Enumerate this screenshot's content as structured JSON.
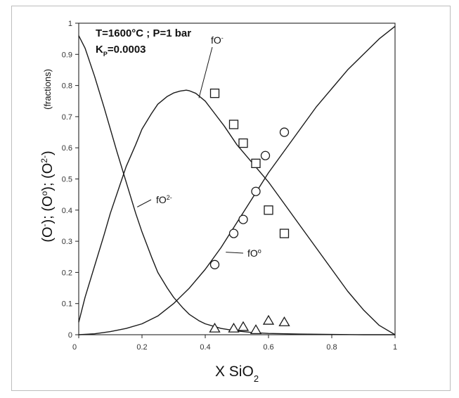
{
  "chart_data": {
    "type": "line",
    "xlabel": {
      "main": "X SiO",
      "sub": "2"
    },
    "ylabel": {
      "parts": [
        {
          "t": "(O"
        },
        {
          "t": "-",
          "sup": true
        },
        {
          "t": "); (O"
        },
        {
          "t": "o",
          "sup": true
        },
        {
          "t": "); (O"
        },
        {
          "t": "2-",
          "sup": true
        },
        {
          "t": ")"
        }
      ],
      "unit": "(fractions)"
    },
    "annotations": [
      {
        "text": "T=1600°C ; P=1 bar"
      },
      {
        "parts": [
          {
            "t": "K"
          },
          {
            "t": "P",
            "sub": true
          },
          {
            "t": "=0.0003"
          }
        ]
      }
    ],
    "xlim": [
      0,
      1
    ],
    "ylim": [
      0,
      1
    ],
    "x_ticks": [
      "0",
      "0.2",
      "0.4",
      "0.6",
      "0.8",
      "1"
    ],
    "y_ticks": [
      "0",
      "0.1",
      "0.2",
      "0.3",
      "0.4",
      "0.5",
      "0.6",
      "0.7",
      "0.8",
      "0.9",
      "1"
    ],
    "series": [
      {
        "name": "fO-",
        "label": {
          "main": "fO",
          "sup": "-"
        },
        "style": "line",
        "x": [
          0.0,
          0.02,
          0.05,
          0.08,
          0.1,
          0.13,
          0.15,
          0.18,
          0.2,
          0.23,
          0.25,
          0.28,
          0.3,
          0.32,
          0.34,
          0.35,
          0.37,
          0.4,
          0.43,
          0.46,
          0.5,
          0.55,
          0.6,
          0.65,
          0.7,
          0.75,
          0.8,
          0.85,
          0.9,
          0.95,
          1.0
        ],
        "y": [
          0.04,
          0.12,
          0.22,
          0.32,
          0.39,
          0.48,
          0.54,
          0.61,
          0.66,
          0.71,
          0.74,
          0.765,
          0.776,
          0.782,
          0.785,
          0.783,
          0.775,
          0.75,
          0.71,
          0.67,
          0.61,
          0.55,
          0.49,
          0.42,
          0.35,
          0.28,
          0.21,
          0.14,
          0.08,
          0.03,
          0.0
        ]
      },
      {
        "name": "fO2-",
        "label": {
          "main": "fO",
          "sup": "2-"
        },
        "style": "line",
        "x": [
          0.0,
          0.02,
          0.05,
          0.08,
          0.1,
          0.12,
          0.15,
          0.18,
          0.2,
          0.23,
          0.25,
          0.28,
          0.3,
          0.33,
          0.35,
          0.38,
          0.4,
          0.45,
          0.5,
          0.55,
          0.6,
          0.7,
          0.8,
          0.9,
          1.0
        ],
        "y": [
          0.96,
          0.92,
          0.83,
          0.73,
          0.66,
          0.59,
          0.49,
          0.39,
          0.33,
          0.25,
          0.2,
          0.15,
          0.12,
          0.085,
          0.065,
          0.045,
          0.035,
          0.02,
          0.012,
          0.007,
          0.004,
          0.002,
          0.001,
          0.0,
          0.0
        ]
      },
      {
        "name": "fOo",
        "label": {
          "main": "fO",
          "sup": "o"
        },
        "style": "line",
        "x": [
          0.0,
          0.05,
          0.1,
          0.15,
          0.2,
          0.25,
          0.3,
          0.35,
          0.4,
          0.45,
          0.5,
          0.55,
          0.6,
          0.65,
          0.7,
          0.75,
          0.8,
          0.85,
          0.9,
          0.95,
          1.0
        ],
        "y": [
          0.0,
          0.003,
          0.01,
          0.02,
          0.035,
          0.06,
          0.1,
          0.15,
          0.21,
          0.28,
          0.36,
          0.44,
          0.52,
          0.59,
          0.66,
          0.73,
          0.79,
          0.85,
          0.9,
          0.95,
          0.99
        ]
      },
      {
        "name": "fO- data",
        "style": "square",
        "x": [
          0.43,
          0.49,
          0.52,
          0.56,
          0.6,
          0.65
        ],
        "y": [
          0.775,
          0.675,
          0.615,
          0.55,
          0.4,
          0.325
        ]
      },
      {
        "name": "fOo data",
        "style": "circle",
        "x": [
          0.43,
          0.49,
          0.52,
          0.56,
          0.59,
          0.65
        ],
        "y": [
          0.225,
          0.325,
          0.37,
          0.46,
          0.575,
          0.65
        ]
      },
      {
        "name": "fO2- data",
        "style": "triangle",
        "x": [
          0.43,
          0.49,
          0.52,
          0.56,
          0.6,
          0.65
        ],
        "y": [
          0.02,
          0.02,
          0.025,
          0.015,
          0.045,
          0.04
        ]
      }
    ]
  }
}
